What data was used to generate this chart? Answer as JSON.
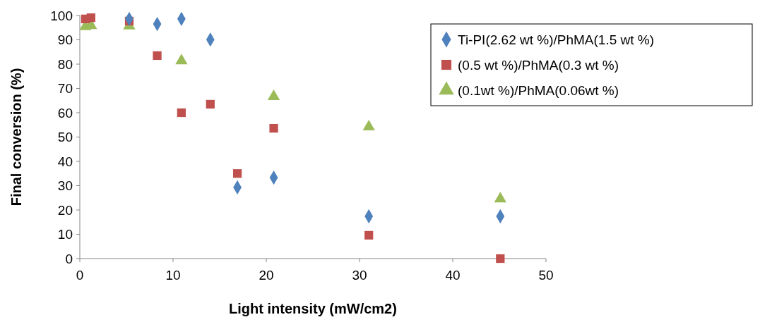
{
  "chart_data": {
    "type": "scatter",
    "xlabel": "Light intensity (mW/cm2)",
    "ylabel": "Final conversion (%)",
    "xlim": [
      0,
      50
    ],
    "xticks": [
      0,
      10,
      20,
      30,
      40,
      50
    ],
    "ylim": [
      0,
      100
    ],
    "yticks": [
      0,
      10,
      20,
      30,
      40,
      50,
      60,
      70,
      80,
      90,
      100
    ],
    "legend": "top right",
    "series": [
      {
        "name": "Ti-PI(2.62 wt %)/PhMA(1.5 wt %)",
        "color": "#4f81bd",
        "marker": "diamond",
        "x": [
          5.3,
          8.3,
          10.9,
          14.0,
          16.9,
          20.8,
          31.0,
          45.1
        ],
        "values": [
          98.6,
          96.5,
          98.6,
          90.1,
          29.3,
          33.3,
          17.4,
          17.4
        ]
      },
      {
        "name": "(0.5 wt %)/PhMA(0.3 wt %)",
        "color": "#c0504d",
        "marker": "square",
        "x": [
          0.6,
          1.2,
          5.3,
          8.3,
          10.9,
          14.0,
          16.9,
          20.8,
          31.0,
          45.1
        ],
        "values": [
          98.6,
          99.1,
          97.7,
          83.5,
          60,
          63.5,
          35,
          53.6,
          9.6,
          0
        ]
      },
      {
        "name": "(0.1wt %)/PhMA(0.06wt %)",
        "color": "#9bbb59",
        "marker": "triangle",
        "x": [
          0.6,
          1.2,
          5.3,
          10.9,
          20.8,
          31.0,
          45.1
        ],
        "values": [
          95.4,
          95.9,
          95.7,
          81.4,
          66.7,
          54.2,
          24.6
        ]
      }
    ]
  }
}
